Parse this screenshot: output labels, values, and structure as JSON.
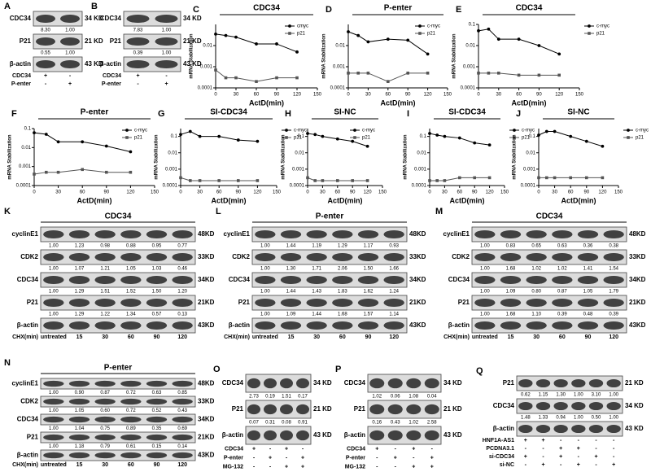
{
  "blots": [
    {
      "label": "A",
      "bands": [
        {
          "name": "CDC34",
          "kd": "34 KD",
          "values": [
            "8.30",
            "1.00"
          ]
        },
        {
          "name": "P21",
          "kd": "21 KD",
          "values": [
            "0.55",
            "1.00"
          ]
        },
        {
          "name": "β-actin",
          "kd": "43 KD"
        }
      ],
      "lanes": [
        {
          "name": "CDC34",
          "labels": [
            "+",
            "-"
          ]
        },
        {
          "name": "P-enter",
          "labels": [
            "-",
            "+"
          ]
        }
      ]
    },
    {
      "label": "B",
      "bands": [
        {
          "name": "CDC34",
          "kd": "34 KD",
          "values": [
            "7.83",
            "1.00"
          ]
        },
        {
          "name": "P21",
          "kd": "21 KD",
          "values": [
            "0.39",
            "1.00"
          ]
        },
        {
          "name": "β-actin",
          "kd": "43 KD"
        }
      ],
      "lanes": [
        {
          "name": "CDC34",
          "labels": [
            "+",
            "-"
          ]
        },
        {
          "name": "P-enter",
          "labels": [
            "-",
            "+"
          ]
        }
      ]
    },
    {
      "label": "K",
      "title": "CDC34",
      "bands": [
        {
          "name": "cyclinE1",
          "kd": "48KD",
          "values": [
            "1.00",
            "1.23",
            "0.98",
            "0.88",
            "0.95",
            "0.77"
          ]
        },
        {
          "name": "CDK2",
          "kd": "33KD",
          "values": [
            "1.00",
            "1.07",
            "1.21",
            "1.05",
            "1.03",
            "0.46"
          ]
        },
        {
          "name": "CDC34",
          "kd": "34KD",
          "values": [
            "1.00",
            "1.29",
            "1.51",
            "1.52",
            "1.50",
            "1.20"
          ]
        },
        {
          "name": "P21",
          "kd": "21KD",
          "values": [
            "1.00",
            "1.29",
            "1.22",
            "1.34",
            "0.57",
            "0.13"
          ]
        },
        {
          "name": "β-actin",
          "kd": "43KD"
        }
      ],
      "lanes": [
        {
          "name": "CHX(min)",
          "labels": [
            "untreated",
            "15",
            "30",
            "60",
            "90",
            "120"
          ]
        }
      ]
    },
    {
      "label": "L",
      "title": "P-enter",
      "bands": [
        {
          "name": "cyclinE1",
          "kd": "48KD",
          "values": [
            "1.00",
            "1.44",
            "1.19",
            "1.29",
            "1.17",
            "0.93"
          ]
        },
        {
          "name": "CDK2",
          "kd": "33KD",
          "values": [
            "1.00",
            "1.30",
            "1.71",
            "2.06",
            "1.50",
            "1.66"
          ]
        },
        {
          "name": "CDC34",
          "kd": "34KD",
          "values": [
            "1.00",
            "1.44",
            "1.43",
            "1.83",
            "1.62",
            "1.24"
          ]
        },
        {
          "name": "P21",
          "kd": "21KD",
          "values": [
            "1.00",
            "1.09",
            "1.44",
            "1.68",
            "1.57",
            "1.14"
          ]
        },
        {
          "name": "β-actin",
          "kd": "43KD"
        }
      ],
      "lanes": [
        {
          "name": "CHX(min)",
          "labels": [
            "untreated",
            "15",
            "30",
            "60",
            "90",
            "120"
          ]
        }
      ]
    },
    {
      "label": "M",
      "title": "CDC34",
      "bands": [
        {
          "name": "cyclinE1",
          "kd": "48KD",
          "values": [
            "1.00",
            "0.83",
            "0.65",
            "0.63",
            "0.36",
            "0.38"
          ]
        },
        {
          "name": "CDK2",
          "kd": "33KD",
          "values": [
            "1.00",
            "1.68",
            "1.02",
            "1.02",
            "1.41",
            "1.54"
          ]
        },
        {
          "name": "CDC34",
          "kd": "34KD",
          "values": [
            "1.00",
            "1.09",
            "0.80",
            "0.87",
            "1.05",
            "1.79"
          ]
        },
        {
          "name": "P21",
          "kd": "21KD",
          "values": [
            "1.00",
            "1.68",
            "1.10",
            "0.39",
            "0.48",
            "0.39"
          ]
        },
        {
          "name": "β-actin",
          "kd": "43KD"
        }
      ],
      "lanes": [
        {
          "name": "CHX(min)",
          "labels": [
            "untreated",
            "15",
            "30",
            "60",
            "90",
            "120"
          ]
        }
      ]
    },
    {
      "label": "N",
      "title": "P-enter",
      "bands": [
        {
          "name": "cyclinE1",
          "kd": "48KD",
          "values": [
            "1.00",
            "0.90",
            "0.87",
            "0.72",
            "0.63",
            "0.85"
          ]
        },
        {
          "name": "CDK2",
          "kd": "33KD",
          "values": [
            "1.00",
            "1.05",
            "0.60",
            "0.72",
            "0.52",
            "0.43"
          ]
        },
        {
          "name": "CDC34",
          "kd": "34KD",
          "values": [
            "1.00",
            "1.04",
            "0.75",
            "0.89",
            "0.35",
            "0.69"
          ]
        },
        {
          "name": "P21",
          "kd": "21KD",
          "values": [
            "1.00",
            "1.18",
            "0.79",
            "0.61",
            "0.15",
            "0.14"
          ]
        },
        {
          "name": "β-actin",
          "kd": "43KD"
        }
      ],
      "lanes": [
        {
          "name": "CHX(min)",
          "labels": [
            "untreated",
            "15",
            "30",
            "60",
            "90",
            "120"
          ]
        }
      ]
    },
    {
      "label": "O",
      "bands": [
        {
          "name": "CDC34",
          "kd": "34 KD",
          "values": [
            "2.73",
            "0.19",
            "1.51",
            "0.17"
          ]
        },
        {
          "name": "P21",
          "kd": "21 KD",
          "values": [
            "0.07",
            "0.31",
            "0.08",
            "0.91"
          ]
        },
        {
          "name": "β-actin",
          "kd": "43 KD"
        }
      ],
      "lanes": [
        {
          "name": "CDC34",
          "labels": [
            "+",
            "-",
            "+",
            "-"
          ]
        },
        {
          "name": "P-enter",
          "labels": [
            "-",
            "+",
            "-",
            "+"
          ]
        },
        {
          "name": "MG-132",
          "labels": [
            "-",
            "-",
            "+",
            "+"
          ]
        }
      ]
    },
    {
      "label": "P",
      "bands": [
        {
          "name": "CDC34",
          "kd": "34 KD",
          "values": [
            "1.02",
            "0.06",
            "1.08",
            "0.04"
          ]
        },
        {
          "name": "P21",
          "kd": "21 KD",
          "values": [
            "0.16",
            "0.43",
            "1.02",
            "2.58"
          ]
        },
        {
          "name": "β-actin",
          "kd": "43 KD"
        }
      ],
      "lanes": [
        {
          "name": "CDC34",
          "labels": [
            "+",
            "-",
            "+",
            "-"
          ]
        },
        {
          "name": "P-enter",
          "labels": [
            "-",
            "+",
            "-",
            "+"
          ]
        },
        {
          "name": "MG-132",
          "labels": [
            "-",
            "-",
            "+",
            "+"
          ]
        }
      ]
    },
    {
      "label": "Q",
      "bands": [
        {
          "name": "P21",
          "kd": "21 KD",
          "values": [
            "0.62",
            "1.15",
            "1.30",
            "1.00",
            "3.10",
            "1.00"
          ]
        },
        {
          "name": "CDC34",
          "kd": "34 KD",
          "values": [
            "1.48",
            "1.33",
            "0.94",
            "1.00",
            "0.50",
            "1.00"
          ]
        },
        {
          "name": "β-actin",
          "kd": "43 KD"
        }
      ],
      "lanes": [
        {
          "name": "HNF1A-AS1",
          "labels": [
            "+",
            "+",
            "-",
            "-",
            "-",
            "-"
          ]
        },
        {
          "name": "PCDNA3.1",
          "labels": [
            "-",
            "-",
            "+",
            "+",
            "-",
            "-"
          ]
        },
        {
          "name": "si-CDC34",
          "labels": [
            "+",
            "-",
            "+",
            "-",
            "+",
            "-"
          ]
        },
        {
          "name": "si-NC",
          "labels": [
            "-",
            "+",
            "-",
            "+",
            "-",
            "+"
          ]
        }
      ]
    }
  ],
  "charts": [
    {
      "label": "C",
      "type": "line",
      "title": "CDC34",
      "ylabel": "mRNA Stabilization",
      "xlabel": "ActD(min)",
      "x": [
        0,
        15,
        30,
        60,
        90,
        120
      ],
      "xlim": [
        0,
        150
      ],
      "xticks": [
        0,
        30,
        60,
        90,
        120,
        150
      ],
      "ylim": [
        0.0001,
        0.1
      ],
      "yticks": [
        0.0001,
        0.001,
        0.01
      ],
      "log_y": true,
      "legend": "upper right",
      "series": [
        {
          "name": "cmyc",
          "color": "#000000",
          "marker": "circle",
          "values": [
            0.035,
            0.03,
            0.025,
            0.012,
            0.012,
            0.005
          ]
        },
        {
          "name": "p21",
          "color": "#555555",
          "marker": "square",
          "values": [
            0.0007,
            0.0003,
            0.0003,
            0.0002,
            0.0003,
            0.0003
          ]
        }
      ]
    },
    {
      "label": "D",
      "type": "line",
      "title": "P-enter",
      "ylabel": "mRNA Stabilization",
      "xlabel": "ActD(min)",
      "x": [
        0,
        15,
        30,
        60,
        90,
        120
      ],
      "xlim": [
        0,
        150
      ],
      "xticks": [
        0,
        30,
        60,
        90,
        120,
        150
      ],
      "ylim": [
        0.0001,
        0.1
      ],
      "yticks": [
        0.0001,
        0.001,
        0.01
      ],
      "log_y": true,
      "legend": "upper right",
      "series": [
        {
          "name": "c-myc",
          "color": "#000000",
          "marker": "circle",
          "values": [
            0.045,
            0.03,
            0.015,
            0.02,
            0.018,
            0.004
          ]
        },
        {
          "name": "p21",
          "color": "#555555",
          "marker": "square",
          "values": [
            0.0005,
            0.0005,
            0.0005,
            0.0002,
            0.0005,
            0.0005
          ]
        }
      ]
    },
    {
      "label": "E",
      "type": "line",
      "title": "CDC34",
      "ylabel": "mRNA Stabilization",
      "xlabel": "ActD(min)",
      "x": [
        0,
        15,
        30,
        60,
        90,
        120
      ],
      "xlim": [
        0,
        150
      ],
      "xticks": [
        0,
        30,
        60,
        90,
        120,
        150
      ],
      "ylim": [
        0.0001,
        0.1
      ],
      "yticks": [
        0.0001,
        0.001,
        0.01,
        0.1
      ],
      "log_y": true,
      "legend": "outside right",
      "series": [
        {
          "name": "c-myc",
          "color": "#000000",
          "marker": "circle",
          "values": [
            0.05,
            0.06,
            0.02,
            0.02,
            0.01,
            0.004
          ]
        },
        {
          "name": "p21",
          "color": "#555555",
          "marker": "square",
          "values": [
            0.0005,
            0.0005,
            0.0005,
            0.0004,
            0.0004,
            0.0004
          ]
        }
      ]
    },
    {
      "label": "F",
      "type": "line",
      "title": "P-enter",
      "ylabel": "mRNA Stabilization",
      "xlabel": "ActD(min)",
      "x": [
        0,
        15,
        30,
        60,
        90,
        120
      ],
      "xlim": [
        0,
        150
      ],
      "xticks": [
        0,
        30,
        60,
        90,
        120,
        150
      ],
      "ylim": [
        0.0001,
        0.1
      ],
      "yticks": [
        0.0001,
        0.001,
        0.01,
        0.1
      ],
      "log_y": true,
      "legend": "upper right",
      "series": [
        {
          "name": "c-myc",
          "color": "#000000",
          "marker": "circle",
          "values": [
            0.06,
            0.05,
            0.02,
            0.02,
            0.012,
            0.006
          ]
        },
        {
          "name": "p21",
          "color": "#555555",
          "marker": "square",
          "values": [
            0.0004,
            0.0005,
            0.0005,
            0.0007,
            0.0005,
            0.0005
          ]
        }
      ]
    },
    {
      "label": "G",
      "type": "line",
      "title": "SI-CDC34",
      "ylabel": "mRNA Stabilization",
      "xlabel": "ActD(min)",
      "x": [
        0,
        15,
        30,
        60,
        90,
        120
      ],
      "xlim": [
        0,
        150
      ],
      "xticks": [
        0,
        30,
        60,
        90,
        120,
        150
      ],
      "ylim": [
        0.0001,
        0.3
      ],
      "yticks": [
        0.0001,
        0.001,
        0.01,
        0.1
      ],
      "log_y": true,
      "legend": "outside right",
      "series": [
        {
          "name": "c-myc",
          "color": "#000000",
          "marker": "circle",
          "values": [
            0.13,
            0.2,
            0.1,
            0.1,
            0.06,
            0.05
          ]
        },
        {
          "name": "p21",
          "color": "#555555",
          "marker": "square",
          "values": [
            0.0003,
            0.0002,
            0.0002,
            0.0002,
            0.0002,
            0.0002
          ]
        }
      ]
    },
    {
      "label": "H",
      "type": "line",
      "title": "SI-NC",
      "ylabel": "mRNA Stabilization",
      "xlabel": "ActD(min)",
      "x": [
        0,
        15,
        30,
        60,
        90,
        120
      ],
      "xlim": [
        0,
        150
      ],
      "xticks": [
        0,
        30,
        60,
        90,
        120,
        150
      ],
      "ylim": [
        0.0001,
        0.3
      ],
      "yticks": [
        0.0001,
        0.001,
        0.01,
        0.1
      ],
      "log_y": true,
      "legend": "upper right",
      "series": [
        {
          "name": "c-myc",
          "color": "#000000",
          "marker": "circle",
          "values": [
            0.15,
            0.13,
            0.1,
            0.07,
            0.05,
            0.025
          ]
        },
        {
          "name": "p21",
          "color": "#555555",
          "marker": "square",
          "values": [
            0.0003,
            0.0002,
            0.0002,
            0.0002,
            0.0002,
            0.0002
          ]
        }
      ]
    },
    {
      "label": "I",
      "type": "line",
      "title": "SI-CDC34",
      "ylabel": "mRNA Stabilization",
      "xlabel": "ActD(min)",
      "x": [
        0,
        15,
        30,
        60,
        90,
        120
      ],
      "xlim": [
        0,
        150
      ],
      "xticks": [
        0,
        30,
        60,
        90,
        120,
        150
      ],
      "ylim": [
        0.0001,
        0.3
      ],
      "yticks": [
        0.0001,
        0.001,
        0.01,
        0.1
      ],
      "log_y": true,
      "legend": "outside right",
      "series": [
        {
          "name": "c-myc",
          "color": "#000000",
          "marker": "circle",
          "values": [
            0.15,
            0.12,
            0.1,
            0.08,
            0.04,
            0.03
          ]
        },
        {
          "name": "p21",
          "color": "#555555",
          "marker": "square",
          "values": [
            0.0002,
            0.0002,
            0.0002,
            0.0003,
            0.0003,
            0.0003
          ]
        }
      ]
    },
    {
      "label": "J",
      "type": "line",
      "title": "SI-NC",
      "ylabel": "mRNA Stabilization",
      "xlabel": "ActD(min)",
      "x": [
        0,
        15,
        30,
        60,
        90,
        120
      ],
      "xlim": [
        0,
        150
      ],
      "xticks": [
        0,
        30,
        60,
        90,
        120,
        150
      ],
      "ylim": [
        0.0001,
        0.3
      ],
      "yticks": [
        0.0001,
        0.001,
        0.01,
        0.1
      ],
      "log_y": true,
      "legend": "outside right",
      "series": [
        {
          "name": "c-myc",
          "color": "#000000",
          "marker": "circle",
          "values": [
            0.12,
            0.2,
            0.2,
            0.1,
            0.05,
            0.025
          ]
        },
        {
          "name": "p21",
          "color": "#555555",
          "marker": "square",
          "values": [
            0.0003,
            0.0003,
            0.0003,
            0.0003,
            0.0003,
            0.0003
          ]
        }
      ]
    }
  ]
}
